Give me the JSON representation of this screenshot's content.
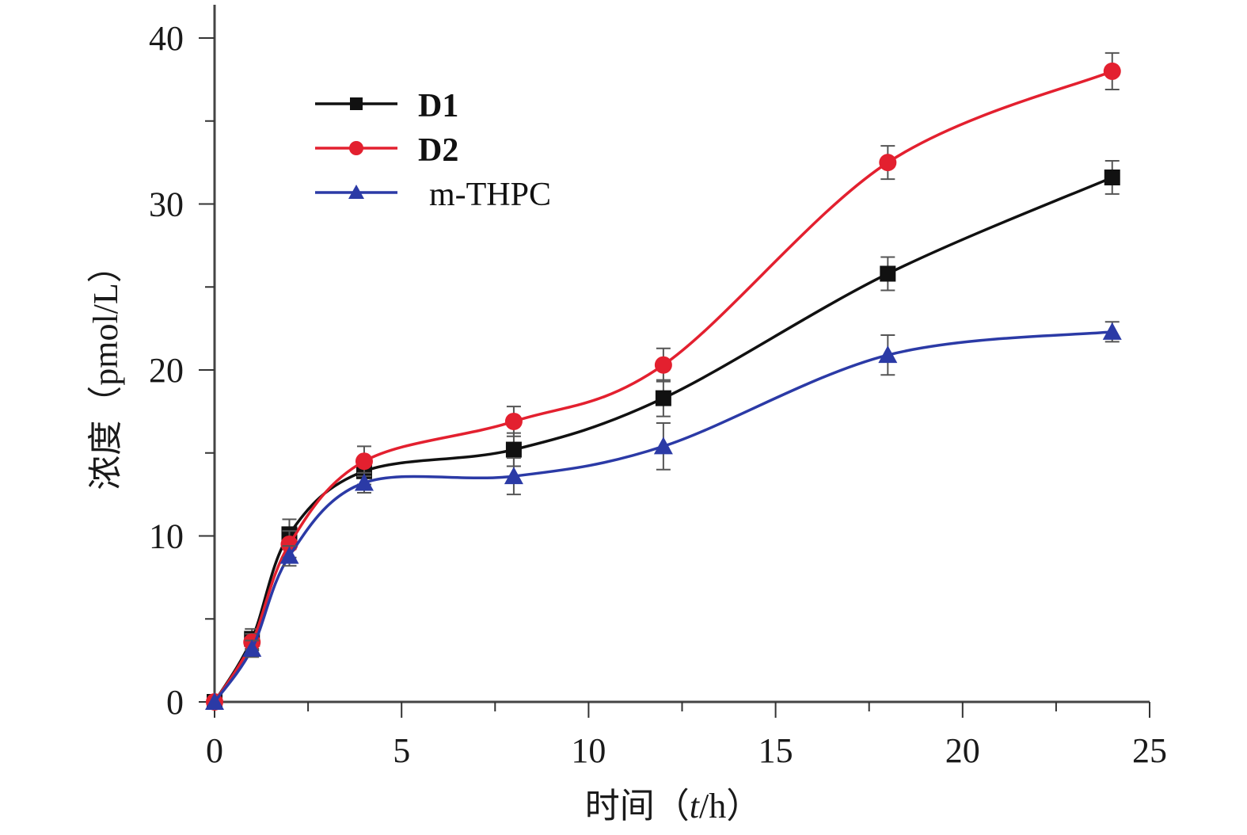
{
  "chart_data": {
    "type": "line",
    "title": "",
    "xlabel": "时间（t/h）",
    "xlabel_parts": {
      "prefix": "时间（",
      "var": "t",
      "suffix": "/h）"
    },
    "ylabel": "浓度（pmol/L）",
    "xlim": [
      0,
      25
    ],
    "ylim": [
      0,
      40
    ],
    "xticks": [
      0,
      5,
      10,
      15,
      20,
      25
    ],
    "yticks": [
      0,
      10,
      20,
      30,
      40
    ],
    "xtick_labels": [
      "0",
      "5",
      "10",
      "15",
      "20",
      "25"
    ],
    "ytick_labels": [
      "0",
      "10",
      "20",
      "30",
      "40"
    ],
    "grid": false,
    "legend_position": "top-left",
    "x": [
      0,
      1,
      2,
      4,
      8,
      12,
      18,
      24
    ],
    "series": [
      {
        "name": "D1",
        "color": "#111111",
        "marker": "square",
        "bold": true,
        "values": [
          0,
          3.8,
          10.1,
          13.9,
          15.2,
          18.3,
          25.8,
          31.6
        ],
        "errors": [
          0,
          0.6,
          0.9,
          0.8,
          1.0,
          1.1,
          1.0,
          1.0
        ]
      },
      {
        "name": "D2",
        "color": "#e3202f",
        "marker": "circle",
        "bold": true,
        "values": [
          0,
          3.6,
          9.5,
          14.5,
          16.9,
          20.3,
          32.5,
          38.0
        ],
        "errors": [
          0,
          0.5,
          0.8,
          0.9,
          0.9,
          1.0,
          1.0,
          1.1
        ]
      },
      {
        "name": "m-THPC",
        "color": "#2b3aa6",
        "marker": "triangle",
        "bold": false,
        "values": [
          0,
          3.2,
          8.8,
          13.2,
          13.6,
          15.4,
          20.9,
          22.3
        ],
        "errors": [
          0,
          0.5,
          0.6,
          0.6,
          1.1,
          1.4,
          1.2,
          0.6
        ]
      }
    ]
  }
}
